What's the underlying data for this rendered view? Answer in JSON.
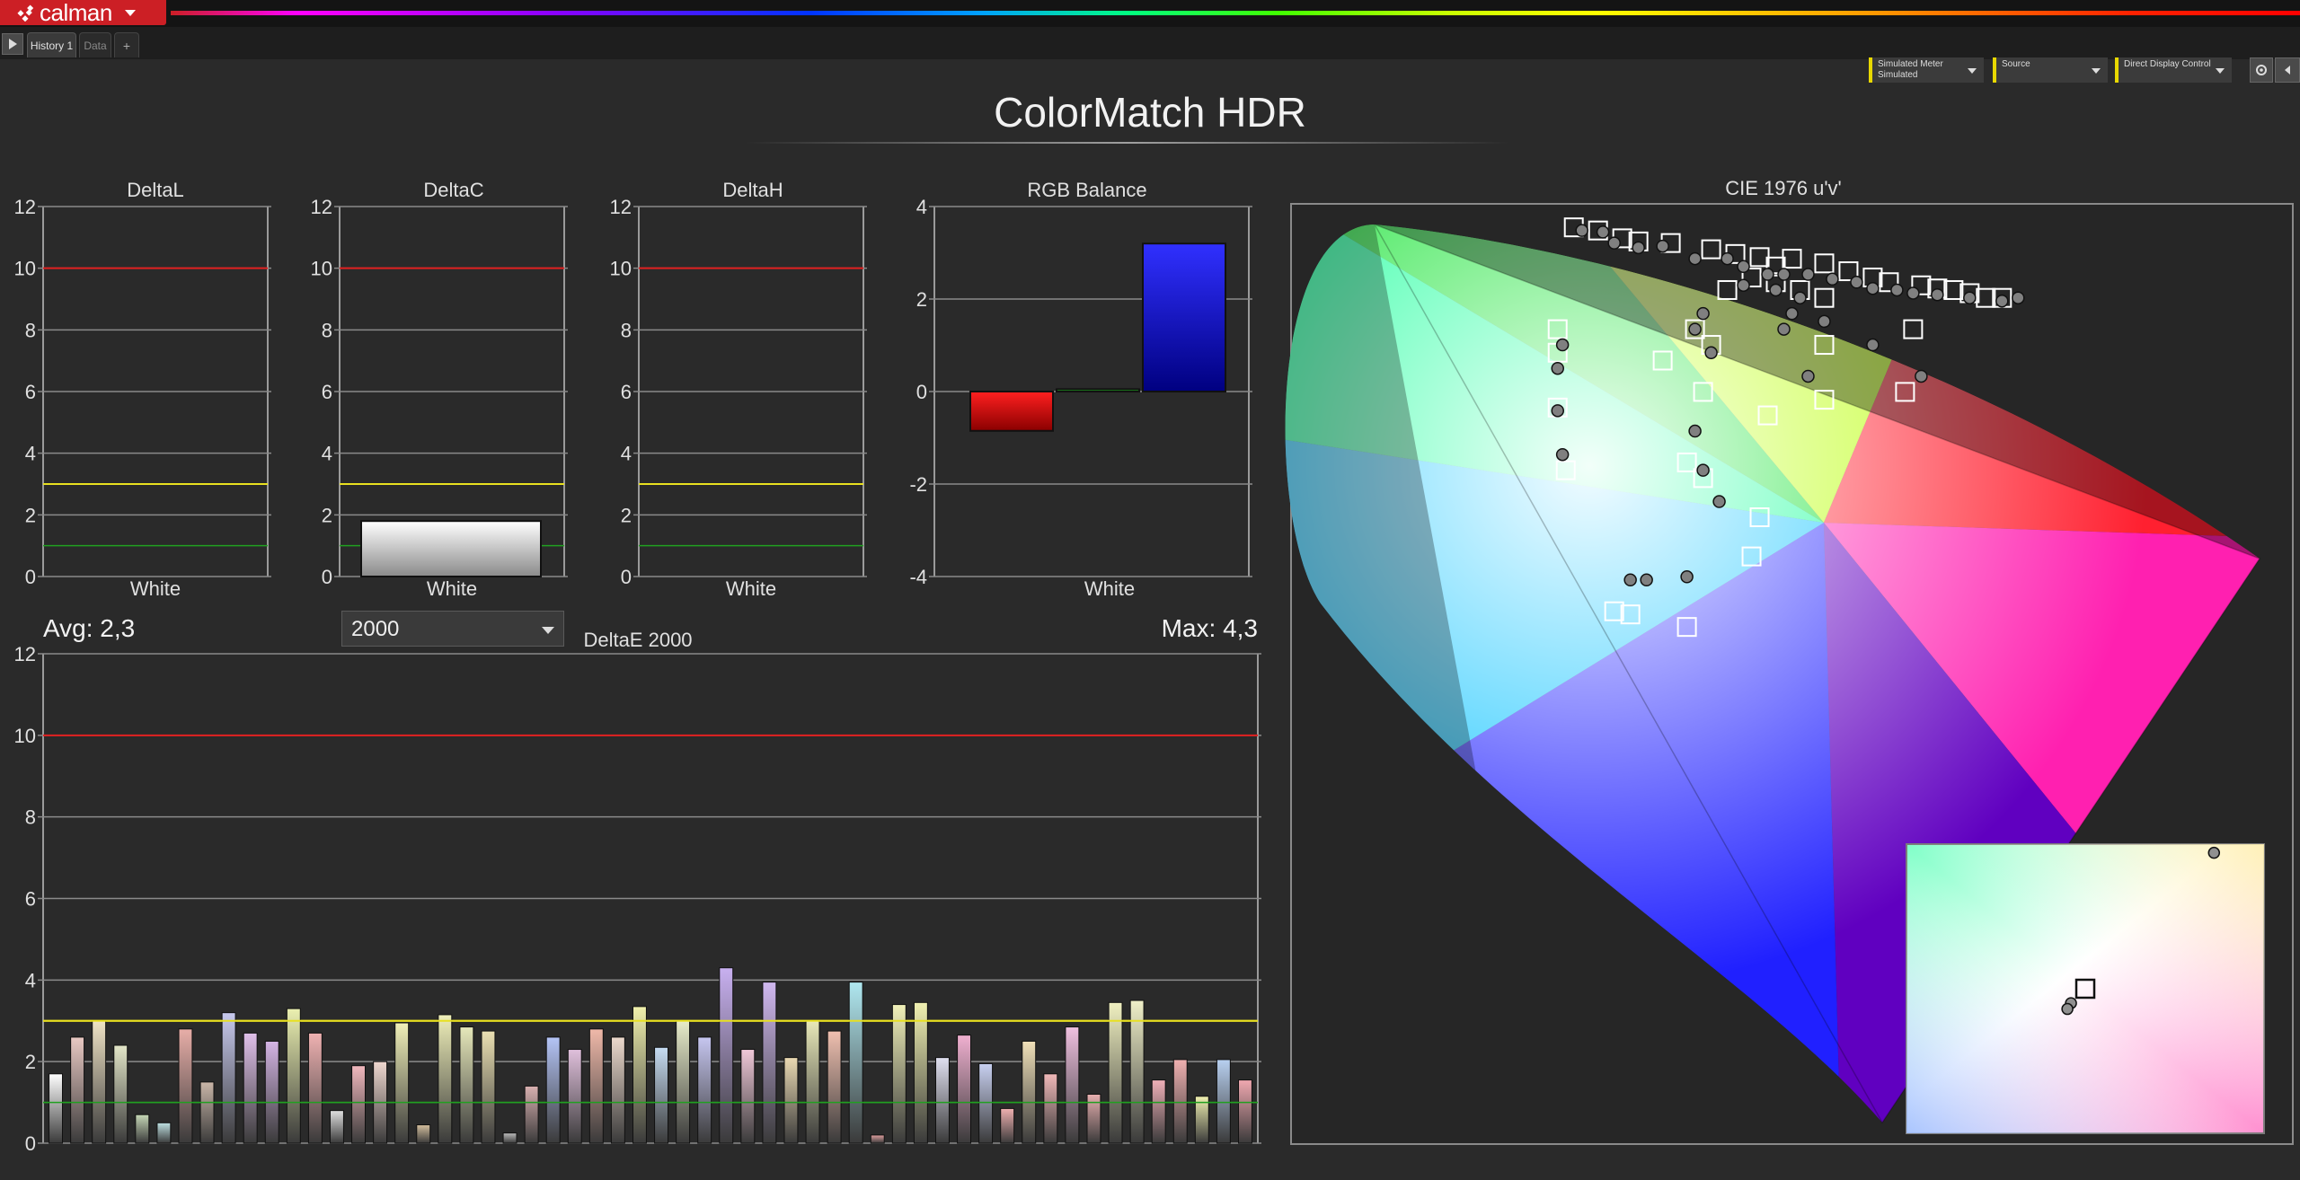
{
  "app": {
    "name": "calman"
  },
  "tabs": [
    {
      "label": "History 1",
      "active": true
    },
    {
      "label": "Data",
      "active": false
    },
    {
      "label": "+",
      "active": false
    }
  ],
  "selectors": {
    "meter": {
      "line1": "Simulated Meter",
      "line2": "Simulated"
    },
    "source": {
      "line1": "Source"
    },
    "display": {
      "line1": "Direct Display Control"
    }
  },
  "page": {
    "title": "ColorMatch HDR"
  },
  "stats": {
    "avg": "Avg: 2,3",
    "max": "Max: 4,3"
  },
  "deltae_formula": {
    "selected": "2000"
  },
  "chart_data": [
    {
      "id": "deltaL",
      "type": "bar",
      "title": "DeltaL",
      "categories": [
        "White"
      ],
      "values": [
        0
      ],
      "ylim": [
        0,
        12
      ],
      "yticks": [
        0,
        2,
        4,
        6,
        8,
        10,
        12
      ],
      "thresholds": {
        "red": 10,
        "yellow": 3,
        "green": 1
      }
    },
    {
      "id": "deltaC",
      "type": "bar",
      "title": "DeltaC",
      "categories": [
        "White"
      ],
      "values": [
        1.8
      ],
      "ylim": [
        0,
        12
      ],
      "yticks": [
        0,
        2,
        4,
        6,
        8,
        10,
        12
      ],
      "thresholds": {
        "red": 10,
        "yellow": 3,
        "green": 1
      }
    },
    {
      "id": "deltaH",
      "type": "bar",
      "title": "DeltaH",
      "categories": [
        "White"
      ],
      "values": [
        0
      ],
      "ylim": [
        0,
        12
      ],
      "yticks": [
        0,
        2,
        4,
        6,
        8,
        10,
        12
      ],
      "thresholds": {
        "red": 10,
        "yellow": 3,
        "green": 1
      }
    },
    {
      "id": "rgb",
      "type": "bar",
      "title": "RGB Balance",
      "categories": [
        "White"
      ],
      "series": [
        {
          "color": "#ff0000",
          "values": [
            -0.85
          ]
        },
        {
          "color": "#00ff00",
          "values": [
            0.05
          ]
        },
        {
          "color": "#0000ff",
          "values": [
            3.2
          ]
        }
      ],
      "ylim": [
        -4,
        4
      ],
      "yticks": [
        -4,
        -2,
        0,
        2,
        4
      ]
    },
    {
      "id": "deltaE",
      "type": "bar",
      "title": "DeltaE 2000",
      "ylim": [
        0,
        12
      ],
      "yticks": [
        0,
        2,
        4,
        6,
        8,
        10,
        12
      ],
      "thresholds": {
        "red": 10,
        "yellow": 3,
        "green": 1
      },
      "values": [
        1.7,
        2.6,
        3.0,
        2.4,
        0.7,
        0.5,
        2.8,
        1.5,
        3.2,
        2.7,
        2.5,
        3.3,
        2.7,
        0.8,
        1.9,
        2.0,
        2.95,
        0.45,
        3.15,
        2.85,
        2.75,
        0.25,
        1.4,
        2.6,
        2.3,
        2.8,
        2.6,
        3.35,
        2.35,
        3.0,
        2.6,
        4.3,
        2.3,
        3.95,
        2.1,
        3.0,
        2.75,
        3.95,
        0.2,
        3.4,
        3.45,
        2.1,
        2.65,
        1.95,
        0.85,
        2.5,
        1.7,
        2.85,
        1.2,
        3.45,
        3.5,
        1.55,
        2.05,
        1.15,
        2.05,
        1.55
      ],
      "colors": [
        "#ffffff",
        "#e9c9c3",
        "#efe3c5",
        "#e3e6c8",
        "#c6d7b6",
        "#bfe1e3",
        "#e8aea8",
        "#c9b6a8",
        "#c7c9ee",
        "#e0c0ea",
        "#d4b4e4",
        "#ebf0b0",
        "#f0b2b2",
        "#e0e0e0",
        "#f1b8bd",
        "#efd7cf",
        "#f0efb7",
        "#d4bf9e",
        "#efefb9",
        "#e6e8ba",
        "#ebe0b2",
        "#bdbdbd",
        "#d8b0b0",
        "#b4c4f6",
        "#e0c0dc",
        "#f0b9a9",
        "#ecd9cc",
        "#f0f0ac",
        "#c6dcf2",
        "#e7ebc9",
        "#c6c6f0",
        "#c8b0f0",
        "#f0c8d8",
        "#d0b8f0",
        "#ead9b2",
        "#e8e8b8",
        "#f0c0b0",
        "#b0e8f0",
        "#e0a0a0",
        "#f0f0b8",
        "#f0f0b0",
        "#e0e0f0",
        "#f0b0d0",
        "#c8d0f0",
        "#f0b0b0",
        "#f0e0b8",
        "#f0b8b8",
        "#f0c0e0",
        "#e8b0b0",
        "#f0f0c0",
        "#f0f0c8",
        "#f0b0b8",
        "#f0b0b0",
        "#f0f0b0",
        "#b8d0f0",
        "#f0a8b0"
      ]
    }
  ],
  "cie": {
    "title": "CIE 1976 u'v'",
    "targets": [
      [
        0.175,
        0.585
      ],
      [
        0.19,
        0.583
      ],
      [
        0.205,
        0.578
      ],
      [
        0.215,
        0.576
      ],
      [
        0.235,
        0.575
      ],
      [
        0.26,
        0.571
      ],
      [
        0.275,
        0.568
      ],
      [
        0.29,
        0.566
      ],
      [
        0.3,
        0.56
      ],
      [
        0.31,
        0.565
      ],
      [
        0.33,
        0.562
      ],
      [
        0.345,
        0.557
      ],
      [
        0.36,
        0.553
      ],
      [
        0.37,
        0.55
      ],
      [
        0.39,
        0.548
      ],
      [
        0.4,
        0.546
      ],
      [
        0.41,
        0.545
      ],
      [
        0.42,
        0.543
      ],
      [
        0.43,
        0.54
      ],
      [
        0.44,
        0.54
      ],
      [
        0.285,
        0.553
      ],
      [
        0.3,
        0.55
      ],
      [
        0.315,
        0.545
      ],
      [
        0.33,
        0.54
      ],
      [
        0.33,
        0.51
      ],
      [
        0.385,
        0.52
      ],
      [
        0.33,
        0.475
      ],
      [
        0.38,
        0.48
      ],
      [
        0.295,
        0.465
      ],
      [
        0.255,
        0.48
      ],
      [
        0.165,
        0.52
      ],
      [
        0.165,
        0.505
      ],
      [
        0.165,
        0.47
      ],
      [
        0.25,
        0.52
      ],
      [
        0.23,
        0.5
      ],
      [
        0.26,
        0.51
      ],
      [
        0.27,
        0.545
      ],
      [
        0.17,
        0.43
      ],
      [
        0.245,
        0.435
      ],
      [
        0.255,
        0.425
      ],
      [
        0.29,
        0.4
      ],
      [
        0.285,
        0.375
      ],
      [
        0.2,
        0.34
      ],
      [
        0.21,
        0.338
      ],
      [
        0.245,
        0.33
      ]
    ],
    "measured": [
      [
        0.18,
        0.583
      ],
      [
        0.193,
        0.582
      ],
      [
        0.2,
        0.575
      ],
      [
        0.215,
        0.572
      ],
      [
        0.23,
        0.573
      ],
      [
        0.25,
        0.565
      ],
      [
        0.27,
        0.565
      ],
      [
        0.28,
        0.56
      ],
      [
        0.295,
        0.555
      ],
      [
        0.305,
        0.555
      ],
      [
        0.32,
        0.555
      ],
      [
        0.335,
        0.552
      ],
      [
        0.35,
        0.55
      ],
      [
        0.36,
        0.546
      ],
      [
        0.375,
        0.545
      ],
      [
        0.385,
        0.543
      ],
      [
        0.4,
        0.542
      ],
      [
        0.42,
        0.54
      ],
      [
        0.44,
        0.538
      ],
      [
        0.45,
        0.54
      ],
      [
        0.28,
        0.548
      ],
      [
        0.3,
        0.545
      ],
      [
        0.315,
        0.54
      ],
      [
        0.31,
        0.53
      ],
      [
        0.305,
        0.52
      ],
      [
        0.33,
        0.525
      ],
      [
        0.36,
        0.51
      ],
      [
        0.255,
        0.53
      ],
      [
        0.25,
        0.52
      ],
      [
        0.26,
        0.505
      ],
      [
        0.32,
        0.49
      ],
      [
        0.39,
        0.49
      ],
      [
        0.168,
        0.51
      ],
      [
        0.165,
        0.495
      ],
      [
        0.165,
        0.468
      ],
      [
        0.25,
        0.455
      ],
      [
        0.255,
        0.43
      ],
      [
        0.265,
        0.41
      ],
      [
        0.168,
        0.44
      ],
      [
        0.21,
        0.36
      ],
      [
        0.22,
        0.36
      ],
      [
        0.245,
        0.362
      ]
    ],
    "inset_targets": [
      [
        0.5,
        0.5
      ]
    ],
    "inset_measured": [
      [
        0.86,
        0.97
      ],
      [
        0.46,
        0.45
      ],
      [
        0.45,
        0.43
      ]
    ]
  }
}
